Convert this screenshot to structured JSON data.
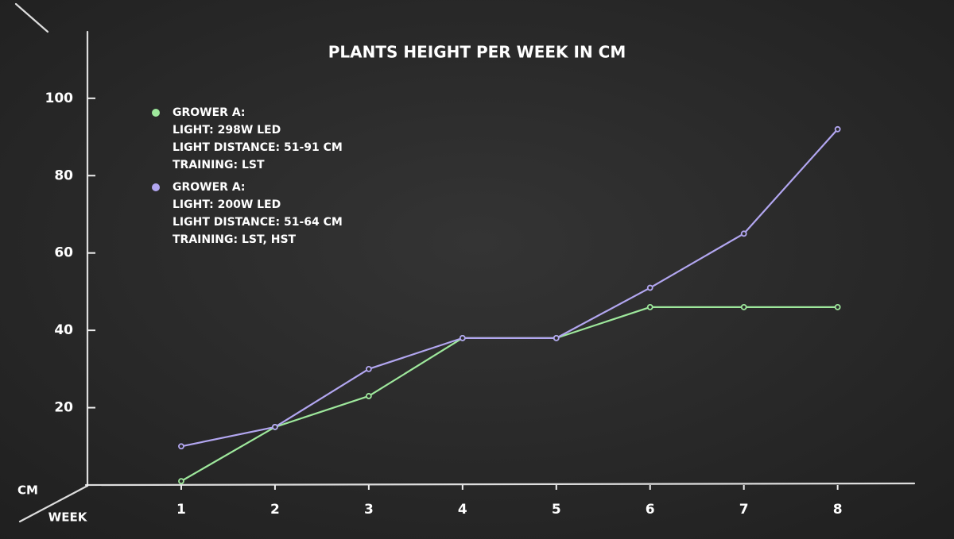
{
  "chart_data": {
    "type": "line",
    "title": "PLANTS HEIGHT PER WEEK IN CM",
    "y_label": "CM",
    "x_label": "WEEK",
    "x": [
      1,
      2,
      3,
      4,
      5,
      6,
      7,
      8
    ],
    "series": [
      {
        "name": "GROWER A:",
        "details": [
          "LIGHT: 298W LED",
          "LIGHT DISTANCE: 51-91 CM",
          "TRAINING: LST"
        ],
        "color": "#9ee89c",
        "values": [
          1,
          15,
          23,
          38,
          38,
          46,
          46,
          46
        ]
      },
      {
        "name": "GROWER A:",
        "details": [
          "LIGHT: 200W LED",
          "LIGHT DISTANCE: 51-64 CM",
          "TRAINING: LST, HST"
        ],
        "color": "#b2a6f0",
        "values": [
          10,
          15,
          30,
          38,
          38,
          51,
          65,
          92
        ]
      }
    ],
    "xlim": [
      0,
      8.8
    ],
    "xticks": [
      1,
      2,
      3,
      4,
      5,
      6,
      7,
      8
    ],
    "ylim": [
      0,
      117
    ],
    "yticks": [
      20,
      40,
      60,
      80,
      100
    ]
  }
}
